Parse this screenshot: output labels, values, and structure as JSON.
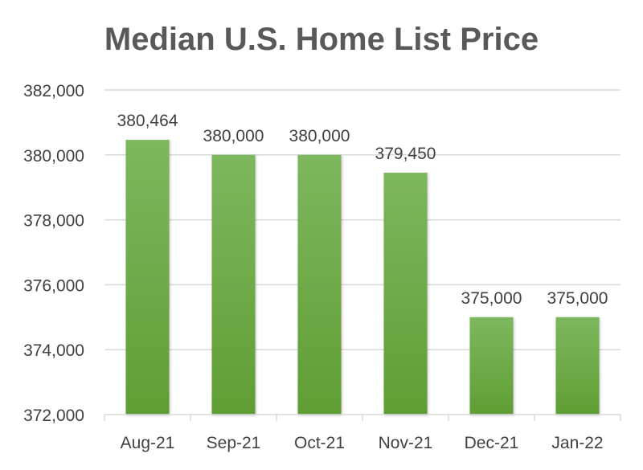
{
  "chart_data": {
    "type": "bar",
    "title": "Median U.S. Home List Price",
    "categories": [
      "Aug-21",
      "Sep-21",
      "Oct-21",
      "Nov-21",
      "Dec-21",
      "Jan-22"
    ],
    "values": [
      380464,
      380000,
      380000,
      379450,
      375000,
      375000
    ],
    "data_labels": [
      "380,464",
      "380,000",
      "380,000",
      "379,450",
      "375,000",
      "375,000"
    ],
    "xlabel": "",
    "ylabel": "",
    "ylim": [
      372000,
      382000
    ],
    "yticks": [
      372000,
      374000,
      376000,
      378000,
      380000,
      382000
    ],
    "ytick_labels": [
      "372,000",
      "374,000",
      "376,000",
      "378,000",
      "380,000",
      "382,000"
    ],
    "grid": true,
    "legend": "none",
    "colors": {
      "bar_top": "#7db75e",
      "bar_bottom": "#5f9e33",
      "grid": "#d9d9d9",
      "text": "#404040",
      "title": "#595959"
    }
  }
}
